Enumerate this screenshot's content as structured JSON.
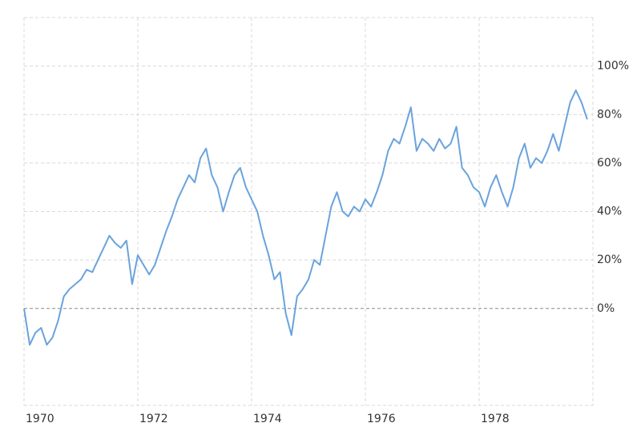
{
  "chart_data": {
    "type": "line",
    "x": [
      1970.0,
      1970.1,
      1970.2,
      1970.3,
      1970.4,
      1970.5,
      1970.6,
      1970.7,
      1970.8,
      1970.9,
      1971.0,
      1971.1,
      1971.2,
      1971.3,
      1971.4,
      1971.5,
      1971.6,
      1971.7,
      1971.8,
      1971.9,
      1972.0,
      1972.1,
      1972.2,
      1972.3,
      1972.4,
      1972.5,
      1972.6,
      1972.7,
      1972.8,
      1972.9,
      1973.0,
      1973.1,
      1973.2,
      1973.3,
      1973.4,
      1973.5,
      1973.6,
      1973.7,
      1973.8,
      1973.9,
      1974.0,
      1974.1,
      1974.2,
      1974.3,
      1974.4,
      1974.5,
      1974.6,
      1974.7,
      1974.8,
      1974.9,
      1975.0,
      1975.1,
      1975.2,
      1975.3,
      1975.4,
      1975.5,
      1975.6,
      1975.7,
      1975.8,
      1975.9,
      1976.0,
      1976.1,
      1976.2,
      1976.3,
      1976.4,
      1976.5,
      1976.6,
      1976.7,
      1976.8,
      1976.9,
      1977.0,
      1977.1,
      1977.2,
      1977.3,
      1977.4,
      1977.5,
      1977.6,
      1977.7,
      1977.8,
      1977.9,
      1978.0,
      1978.1,
      1978.2,
      1978.3,
      1978.4,
      1978.5,
      1978.6,
      1978.7,
      1978.8,
      1978.9,
      1979.0,
      1979.1,
      1979.2,
      1979.3,
      1979.4,
      1979.5,
      1979.6,
      1979.7,
      1979.8,
      1979.9
    ],
    "series": [
      {
        "color": "#6aa3dc",
        "values": [
          0,
          -15,
          -10,
          -8,
          -15,
          -12,
          -5,
          5,
          8,
          10,
          12,
          16,
          15,
          20,
          25,
          30,
          27,
          25,
          28,
          10,
          22,
          18,
          14,
          18,
          25,
          32,
          38,
          45,
          50,
          55,
          52,
          62,
          66,
          55,
          50,
          40,
          48,
          55,
          58,
          50,
          45,
          40,
          30,
          22,
          12,
          15,
          -2,
          -11,
          5,
          8,
          12,
          20,
          18,
          30,
          42,
          48,
          40,
          38,
          42,
          40,
          45,
          42,
          48,
          55,
          65,
          70,
          68,
          75,
          83,
          65,
          70,
          68,
          65,
          70,
          66,
          68,
          75,
          58,
          55,
          50,
          48,
          42,
          50,
          55,
          48,
          42,
          50,
          62,
          68,
          58,
          62,
          60,
          65,
          72,
          65,
          75,
          85,
          90,
          85,
          78
        ]
      }
    ],
    "xlim": [
      1970,
      1980
    ],
    "xticks": [
      1970,
      1972,
      1974,
      1976,
      1978
    ],
    "ylim": [
      -40,
      120
    ],
    "yticks": [
      {
        "value": 0,
        "label": "0%"
      },
      {
        "value": 20,
        "label": "20%"
      },
      {
        "value": 40,
        "label": "40%"
      },
      {
        "value": 60,
        "label": "60%"
      },
      {
        "value": 80,
        "label": "80%"
      },
      {
        "value": 100,
        "label": "100%"
      }
    ],
    "grid": true
  }
}
